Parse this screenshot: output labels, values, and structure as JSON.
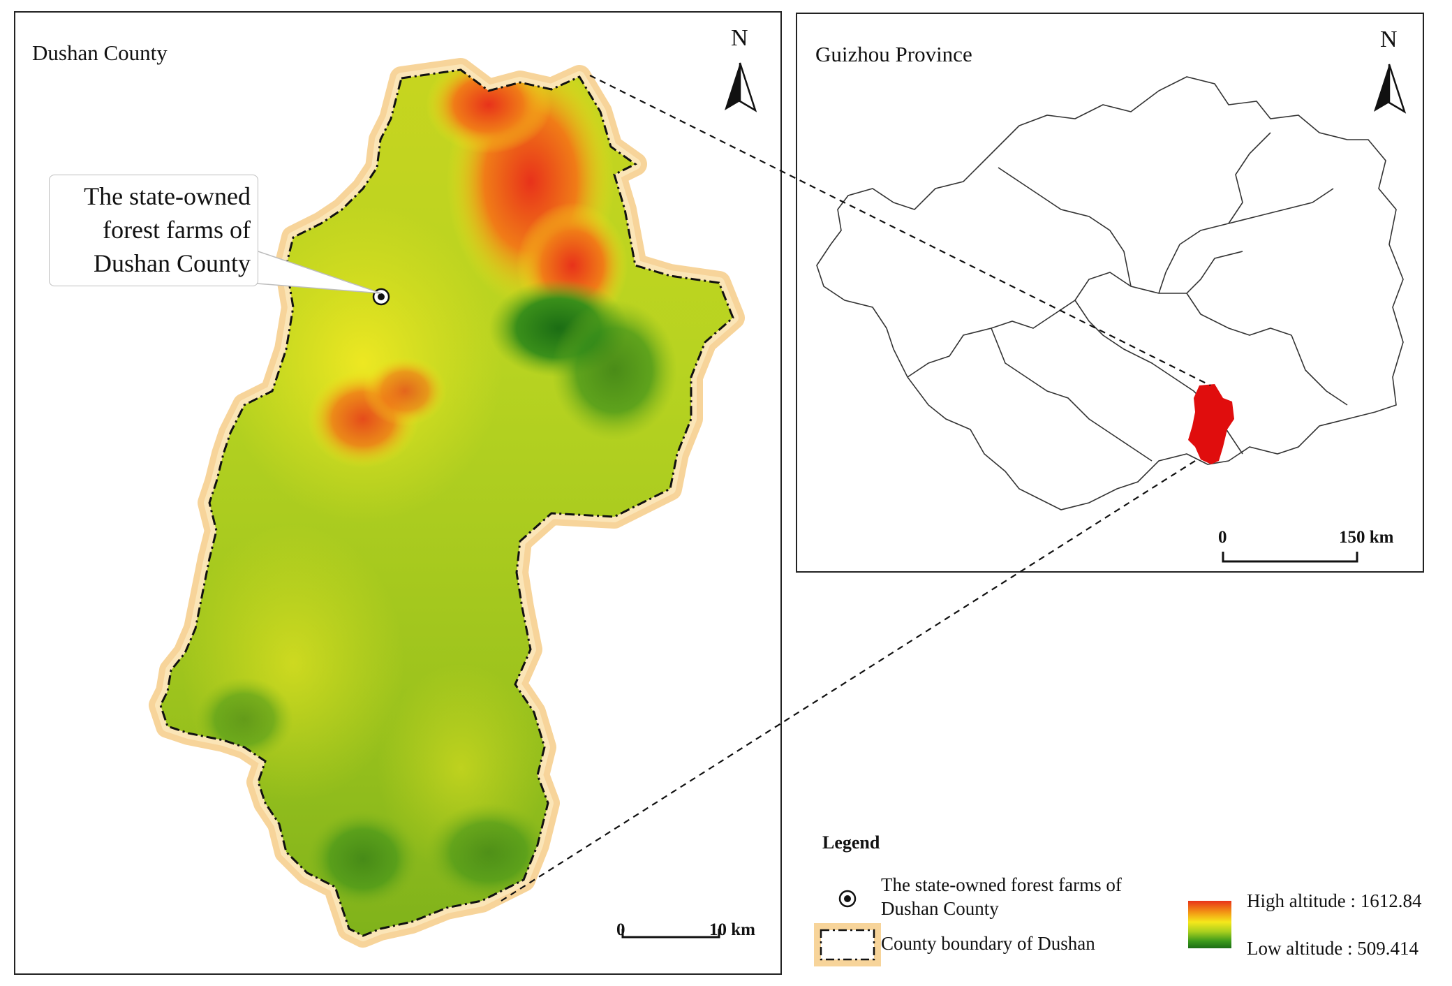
{
  "left_panel": {
    "title": "Dushan County",
    "callout": [
      "The state-owned",
      "forest farms of",
      "Dushan County"
    ],
    "north_label": "N",
    "scale": {
      "start": "0",
      "end": "10 km"
    }
  },
  "right_panel": {
    "title": "Guizhou Province",
    "north_label": "N",
    "scale": {
      "start": "0",
      "end": "150 km"
    }
  },
  "legend": {
    "title": "Legend",
    "farm_label": "The state-owned forest farms of Dushan County",
    "boundary_label": "County boundary of Dushan",
    "high_label": "High altitude : 1612.84",
    "low_label": "Low altitude : 509.414"
  },
  "colors": {
    "high": "#e8321a",
    "mid": "#f5e81b",
    "low": "#1b6d14",
    "highlight": "#e00d0d",
    "buffer": "#f7d49a"
  }
}
